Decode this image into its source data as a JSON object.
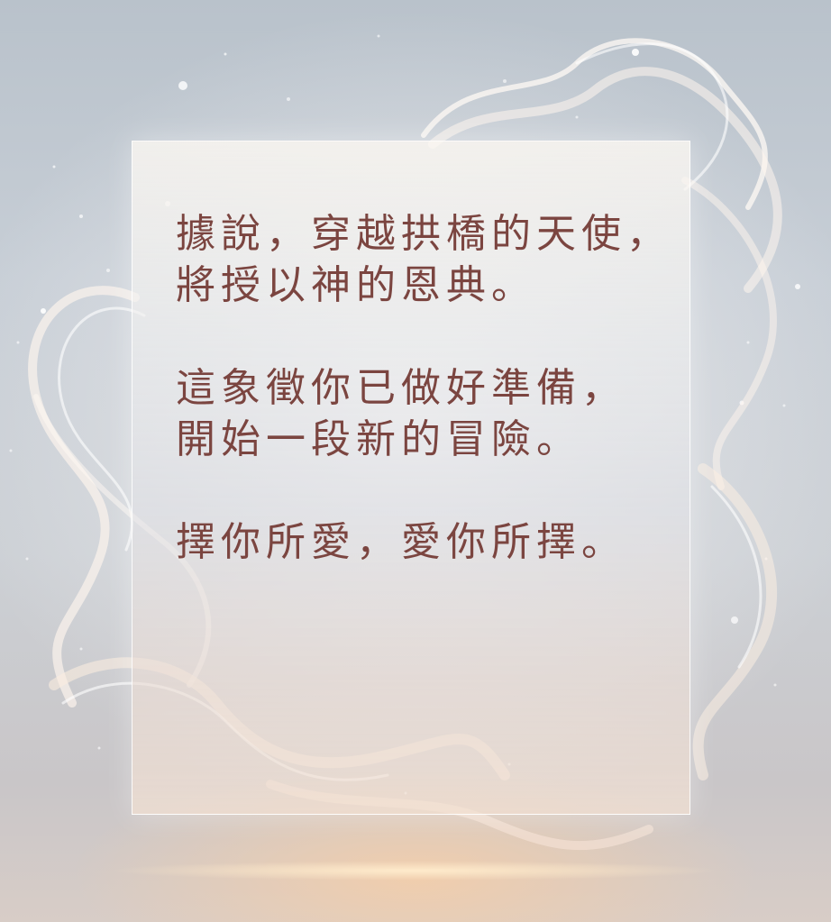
{
  "poem": {
    "stanza1": {
      "line1": "據說，穿越拱橋的天使，",
      "line2": "將授以神的恩典。"
    },
    "stanza2": {
      "line1": "這象徵你已做好準備，",
      "line2": "開始一段新的冒險。"
    },
    "stanza3": {
      "line1": "擇你所愛，愛你所擇。"
    }
  },
  "colors": {
    "text": "#7b4540",
    "background": "#c7ced6",
    "glow": "#f6cea8"
  }
}
